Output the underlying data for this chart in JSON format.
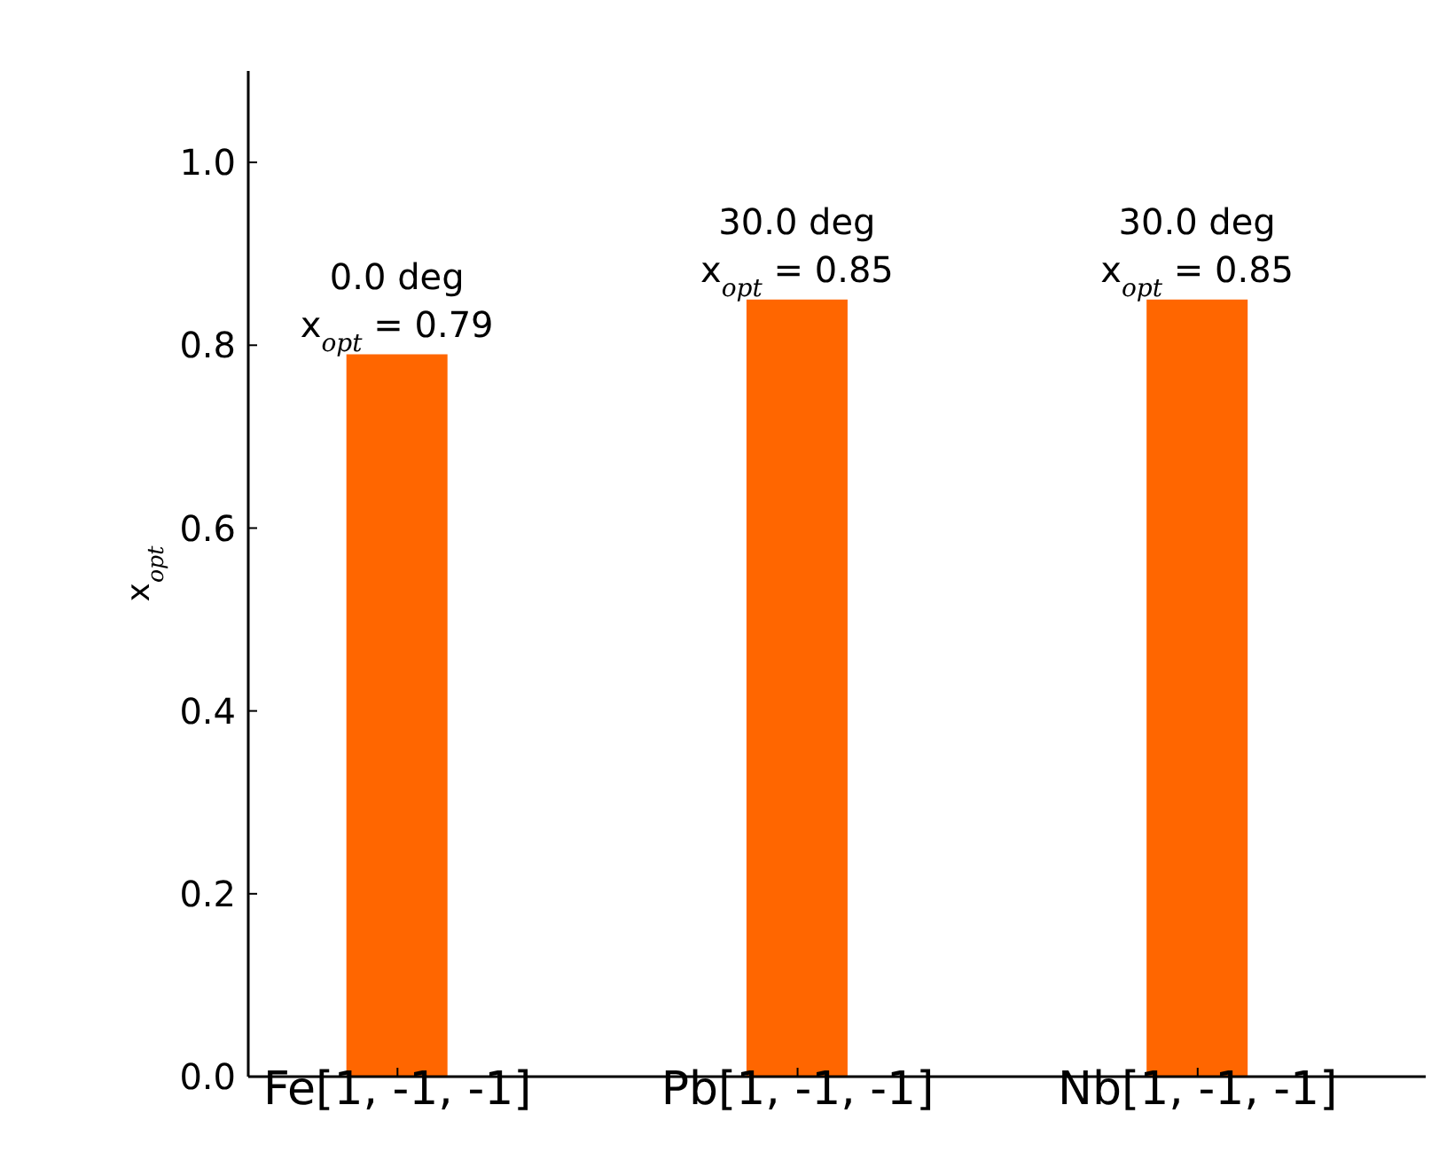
{
  "chart_data": {
    "type": "bar",
    "ylabel": "x$_{opt}$",
    "categories": [
      "Fe[1, -1, -1]",
      "Pb[1, -1, -1]",
      "Nb[1, -1, -1]"
    ],
    "values": [
      0.79,
      0.85,
      0.85
    ],
    "color": "#ff6600",
    "value_labels": [
      "0.0 deg\nx$_{opt}$ = 0.79",
      "30.0 deg\nx$_{opt}$ = 0.85",
      "30.0 deg\nx$_{opt}$ = 0.85"
    ],
    "ylim": [
      0,
      1.1
    ],
    "yticks": [
      {
        "value": 0,
        "label": "0.0"
      },
      0.2,
      0.4,
      0.6,
      0.8,
      {
        "value": 1,
        "label": "1.0"
      }
    ],
    "grid": false,
    "legend": false
  }
}
